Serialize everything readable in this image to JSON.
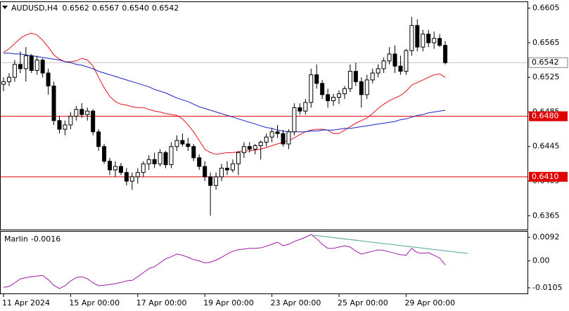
{
  "chart_data": [
    {
      "type": "candlestick",
      "title": "AUDUSD,H4",
      "last_bar_labels": [
        "0.6562",
        "0.6567",
        "0.6540",
        "0.6542"
      ],
      "bull_color": "#ffffff",
      "bear_color": "#000000",
      "wick_color": "#000000",
      "candles": [
        [
          0.6517,
          0.6525,
          0.6509,
          0.652
        ],
        [
          0.652,
          0.653,
          0.6515,
          0.6525
        ],
        [
          0.6525,
          0.6545,
          0.652,
          0.654
        ],
        [
          0.654,
          0.6555,
          0.653,
          0.6535
        ],
        [
          0.6535,
          0.656,
          0.652,
          0.655
        ],
        [
          0.655,
          0.6552,
          0.653,
          0.6533
        ],
        [
          0.6533,
          0.655,
          0.6528,
          0.6545
        ],
        [
          0.6545,
          0.6547,
          0.6525,
          0.653
        ],
        [
          0.653,
          0.6535,
          0.6505,
          0.6515
        ],
        [
          0.6515,
          0.652,
          0.647,
          0.6475
        ],
        [
          0.6475,
          0.648,
          0.646,
          0.6465
        ],
        [
          0.6465,
          0.6475,
          0.6458,
          0.647
        ],
        [
          0.647,
          0.6485,
          0.6465,
          0.648
        ],
        [
          0.648,
          0.6492,
          0.6475,
          0.6488
        ],
        [
          0.6488,
          0.6495,
          0.6478,
          0.6482
        ],
        [
          0.6482,
          0.649,
          0.6475,
          0.6486
        ],
        [
          0.6486,
          0.6488,
          0.6458,
          0.6462
        ],
        [
          0.6462,
          0.6465,
          0.644,
          0.6445
        ],
        [
          0.6445,
          0.6448,
          0.6425,
          0.6428
        ],
        [
          0.6428,
          0.6432,
          0.6412,
          0.6418
        ],
        [
          0.6418,
          0.6428,
          0.641,
          0.6422
        ],
        [
          0.6422,
          0.6426,
          0.6412,
          0.6415
        ],
        [
          0.6415,
          0.642,
          0.64,
          0.6405
        ],
        [
          0.6405,
          0.6415,
          0.6395,
          0.641
        ],
        [
          0.641,
          0.642,
          0.6402,
          0.6415
        ],
        [
          0.6415,
          0.6428,
          0.641,
          0.6425
        ],
        [
          0.6425,
          0.6435,
          0.6418,
          0.643
        ],
        [
          0.643,
          0.6438,
          0.642,
          0.6425
        ],
        [
          0.6425,
          0.6442,
          0.6422,
          0.6438
        ],
        [
          0.6438,
          0.644,
          0.642,
          0.6424
        ],
        [
          0.6424,
          0.645,
          0.642,
          0.6445
        ],
        [
          0.6445,
          0.6458,
          0.644,
          0.6452
        ],
        [
          0.6452,
          0.646,
          0.6445,
          0.6448
        ],
        [
          0.6448,
          0.6455,
          0.644,
          0.6445
        ],
        [
          0.6445,
          0.6448,
          0.6428,
          0.6432
        ],
        [
          0.6432,
          0.6436,
          0.6418,
          0.6422
        ],
        [
          0.6422,
          0.6428,
          0.6405,
          0.641
        ],
        [
          0.641,
          0.6415,
          0.6365,
          0.64
        ],
        [
          0.64,
          0.6415,
          0.6395,
          0.641
        ],
        [
          0.641,
          0.6425,
          0.6405,
          0.642
        ],
        [
          0.642,
          0.6428,
          0.6412,
          0.6418
        ],
        [
          0.6418,
          0.643,
          0.6415,
          0.6425
        ],
        [
          0.6425,
          0.644,
          0.6412,
          0.6438
        ],
        [
          0.6438,
          0.645,
          0.6432,
          0.6445
        ],
        [
          0.6445,
          0.645,
          0.6438,
          0.6442
        ],
        [
          0.6442,
          0.6448,
          0.6436,
          0.6446
        ],
        [
          0.6446,
          0.6452,
          0.643,
          0.645
        ],
        [
          0.645,
          0.646,
          0.6445,
          0.6456
        ],
        [
          0.6456,
          0.6466,
          0.645,
          0.6462
        ],
        [
          0.6462,
          0.647,
          0.6455,
          0.646
        ],
        [
          0.646,
          0.6464,
          0.6445,
          0.6448
        ],
        [
          0.6448,
          0.6465,
          0.6442,
          0.6462
        ],
        [
          0.6462,
          0.6495,
          0.6458,
          0.649
        ],
        [
          0.649,
          0.6495,
          0.6482,
          0.6486
        ],
        [
          0.6486,
          0.65,
          0.6482,
          0.6496
        ],
        [
          0.6496,
          0.6535,
          0.649,
          0.6528
        ],
        [
          0.6528,
          0.654,
          0.6512,
          0.6518
        ],
        [
          0.6518,
          0.6522,
          0.65,
          0.6505
        ],
        [
          0.6505,
          0.6512,
          0.649,
          0.6498
        ],
        [
          0.6498,
          0.6506,
          0.6492,
          0.6502
        ],
        [
          0.6502,
          0.651,
          0.6494,
          0.6506
        ],
        [
          0.6506,
          0.6515,
          0.65,
          0.6512
        ],
        [
          0.6512,
          0.654,
          0.6508,
          0.6532
        ],
        [
          0.6532,
          0.6542,
          0.6515,
          0.652
        ],
        [
          0.652,
          0.6525,
          0.649,
          0.6505
        ],
        [
          0.6505,
          0.6528,
          0.65,
          0.6522
        ],
        [
          0.6522,
          0.6535,
          0.6518,
          0.653
        ],
        [
          0.653,
          0.654,
          0.6525,
          0.6535
        ],
        [
          0.6535,
          0.6548,
          0.653,
          0.6544
        ],
        [
          0.6544,
          0.656,
          0.654,
          0.6552
        ],
        [
          0.6552,
          0.6562,
          0.653,
          0.6538
        ],
        [
          0.6538,
          0.655,
          0.6528,
          0.6532
        ],
        [
          0.6532,
          0.6558,
          0.6528,
          0.6556
        ],
        [
          0.6556,
          0.6595,
          0.655,
          0.6585
        ],
        [
          0.6585,
          0.6592,
          0.6555,
          0.656
        ],
        [
          0.656,
          0.658,
          0.6555,
          0.6575
        ],
        [
          0.6575,
          0.658,
          0.656,
          0.6565
        ],
        [
          0.6565,
          0.6578,
          0.6558,
          0.657
        ],
        [
          0.657,
          0.6575,
          0.656,
          0.6562
        ],
        [
          0.6562,
          0.6567,
          0.654,
          0.6542
        ]
      ],
      "series": [
        {
          "color": "#e8101c",
          "values": [
            0.6554,
            0.6558,
            0.6564,
            0.657,
            0.6574,
            0.6576,
            0.6574,
            0.6568,
            0.656,
            0.6551,
            0.6546,
            0.6543,
            0.6543,
            0.6544,
            0.6547,
            0.6545,
            0.6538,
            0.6525,
            0.6513,
            0.6503,
            0.6497,
            0.6494,
            0.6493,
            0.6491,
            0.649,
            0.649,
            0.6488,
            0.6486,
            0.6485,
            0.6483,
            0.6482,
            0.6481,
            0.6477,
            0.647,
            0.6462,
            0.6452,
            0.6442,
            0.6438,
            0.6436,
            0.6437,
            0.6438,
            0.6438,
            0.6439,
            0.644,
            0.644,
            0.6441,
            0.6442,
            0.6444,
            0.6446,
            0.6448,
            0.645,
            0.6452,
            0.6455,
            0.6459,
            0.6462,
            0.6464,
            0.6465,
            0.6465,
            0.6464,
            0.646,
            0.646,
            0.6464,
            0.6468,
            0.6472,
            0.6475,
            0.6478,
            0.6483,
            0.6489,
            0.6494,
            0.6498,
            0.6501,
            0.6504,
            0.6509,
            0.6516,
            0.6519,
            0.6522,
            0.6525,
            0.6528,
            0.6529,
            0.6525
          ]
        },
        {
          "color": "#1a22c8",
          "values": [
            0.6553,
            0.6553,
            0.6552,
            0.6552,
            0.6551,
            0.655,
            0.6549,
            0.6548,
            0.6547,
            0.6546,
            0.6545,
            0.6543,
            0.6542,
            0.654,
            0.6539,
            0.6537,
            0.6535,
            0.6532,
            0.653,
            0.6528,
            0.6526,
            0.6524,
            0.6522,
            0.652,
            0.6518,
            0.6516,
            0.6514,
            0.6511,
            0.6509,
            0.6507,
            0.6504,
            0.6501,
            0.6499,
            0.6497,
            0.6494,
            0.6491,
            0.6489,
            0.6487,
            0.6485,
            0.6483,
            0.6481,
            0.6479,
            0.6477,
            0.6475,
            0.6473,
            0.6471,
            0.6469,
            0.6467,
            0.6466,
            0.6464,
            0.6463,
            0.6462,
            0.6462,
            0.6462,
            0.6462,
            0.6463,
            0.6463,
            0.6464,
            0.6464,
            0.6464,
            0.6465,
            0.6466,
            0.6466,
            0.6467,
            0.6468,
            0.6469,
            0.647,
            0.6471,
            0.6472,
            0.6473,
            0.6474,
            0.6476,
            0.6477,
            0.6479,
            0.6481,
            0.6482,
            0.6484,
            0.6485,
            0.6486,
            0.6487
          ]
        }
      ],
      "levels": [
        {
          "value": 0.648,
          "label": "0.6480"
        },
        {
          "value": 0.641,
          "label": "0.6410"
        }
      ],
      "level_color": "#e00000",
      "last_price": 0.6542,
      "ylim": [
        0.6349,
        0.6612
      ],
      "yticks": [
        0.6605,
        0.6565,
        0.6525,
        0.6485,
        0.6445,
        0.6405,
        0.6365
      ],
      "xticks": [
        {
          "value": 0,
          "label": "11 Apr 2024"
        },
        {
          "value": 12,
          "label": "15 Apr 00:00"
        },
        {
          "value": 24,
          "label": "17 Apr 00:00"
        },
        {
          "value": 36,
          "label": "19 Apr 00:00"
        },
        {
          "value": 48,
          "label": "23 Apr 00:00"
        },
        {
          "value": 60,
          "label": "25 Apr 00:00"
        },
        {
          "value": 72,
          "label": "29 Apr 00:00"
        }
      ]
    },
    {
      "type": "line",
      "series": [
        {
          "name": "Marlin",
          "color": "#a01aa8",
          "values": [
            -0.0103,
            -0.01,
            -0.0086,
            -0.007,
            -0.0065,
            -0.0062,
            -0.0059,
            -0.0057,
            -0.0073,
            -0.0095,
            -0.0108,
            -0.0097,
            -0.0078,
            -0.0065,
            -0.0062,
            -0.007,
            -0.0086,
            -0.0097,
            -0.0095,
            -0.0092,
            -0.0089,
            -0.0084,
            -0.0078,
            -0.0076,
            -0.0062,
            -0.0046,
            -0.003,
            -0.0022,
            -0.0008,
            0.0008,
            0.0016,
            0.0027,
            0.0022,
            0.0014,
            0.0005,
            0.0,
            -0.0008,
            -0.0005,
            0.0003,
            0.0014,
            0.0027,
            0.0038,
            0.0043,
            0.0046,
            0.0049,
            0.0049,
            0.0051,
            0.0057,
            0.0065,
            0.0073,
            0.0059,
            0.0065,
            0.0076,
            0.0084,
            0.0092,
            0.0103,
            0.0086,
            0.0065,
            0.0049,
            0.0049,
            0.0054,
            0.0059,
            0.0054,
            0.0038,
            0.0027,
            0.0032,
            0.0038,
            0.0043,
            0.0041,
            0.0035,
            0.003,
            0.0024,
            0.0022,
            0.0049,
            0.0032,
            0.003,
            0.0032,
            0.0022,
            0.0011,
            -0.0016
          ]
        }
      ],
      "ylim": [
        -0.0127,
        0.0114
      ],
      "yticks": [
        0.0092,
        {
          "value": 0,
          "label": "0.00"
        },
        -0.0105
      ]
    }
  ]
}
